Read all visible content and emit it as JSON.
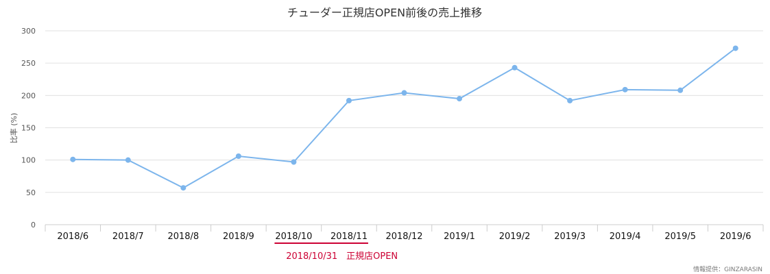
{
  "chart_data": {
    "type": "line",
    "title": "チューダー正規店OPEN前後の売上推移",
    "ylabel": "比率 (%)",
    "xlabel": "",
    "ylim": [
      0,
      300
    ],
    "yticks": [
      "0",
      "50",
      "100",
      "150",
      "200",
      "250",
      "300"
    ],
    "categories": [
      "2018/6",
      "2018/7",
      "2018/8",
      "2018/9",
      "2018/10",
      "2018/11",
      "2018/12",
      "2019/1",
      "2019/2",
      "2019/3",
      "2019/4",
      "2019/5",
      "2019/6"
    ],
    "series": [
      {
        "values": [
          101,
          100,
          57,
          106,
          97,
          192,
          204,
          195,
          243,
          192,
          209,
          208,
          273
        ],
        "color": "#7cb5ec"
      }
    ],
    "grid": true,
    "annotation": {
      "text": "2018/10/31　正規店OPEN",
      "color": "#cc0033",
      "between_categories": [
        "2018/10",
        "2018/11"
      ]
    },
    "credit": "情報提供：GINZARASIN"
  }
}
